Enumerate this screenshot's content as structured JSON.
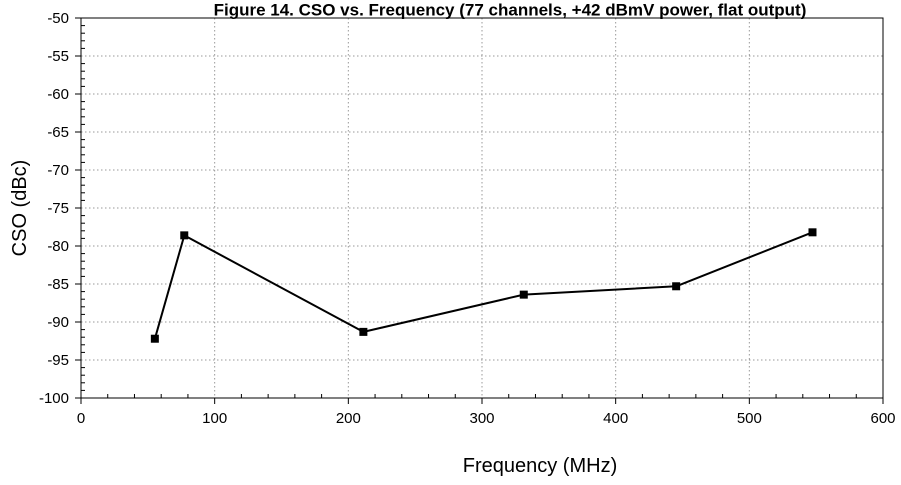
{
  "chart_data": {
    "type": "line",
    "title": "Figure 14. CSO vs. Frequency (77 channels, +42 dBmV power, flat output)",
    "xlabel": "Frequency (MHz)",
    "ylabel": "CSO (dBc)",
    "xlim": [
      0,
      600
    ],
    "ylim": [
      -100,
      -50
    ],
    "x_ticks": [
      0,
      100,
      200,
      300,
      400,
      500,
      600
    ],
    "y_ticks": [
      -50,
      -55,
      -60,
      -65,
      -70,
      -75,
      -80,
      -85,
      -90,
      -95,
      -100
    ],
    "x_minor_step": 20,
    "y_minor_step": 1,
    "grid": true,
    "legend": "none",
    "line_color": "#000000",
    "marker": "square",
    "series": [
      {
        "x": [
          55.25,
          77.25,
          211.25,
          331.25,
          445.25,
          547.25
        ],
        "values": [
          -92.2,
          -78.6,
          -91.3,
          -86.4,
          -85.3,
          -78.2
        ]
      }
    ]
  }
}
